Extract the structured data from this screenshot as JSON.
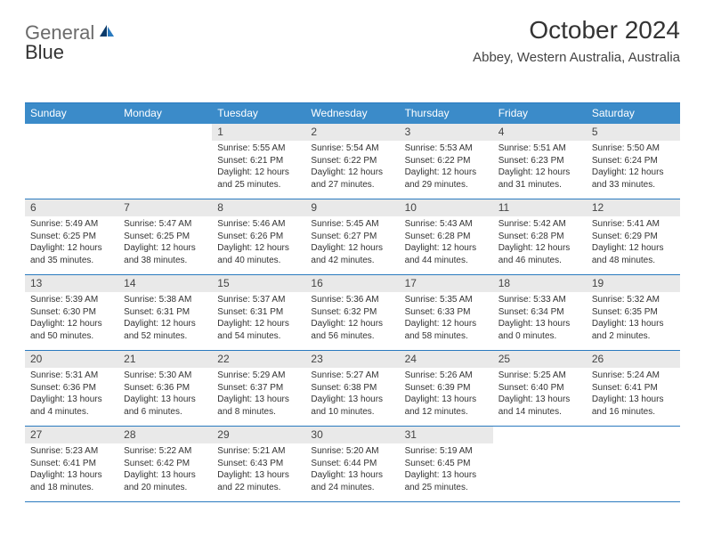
{
  "logo": {
    "part1": "General",
    "part2": "Blue"
  },
  "title": "October 2024",
  "location": "Abbey, Western Australia, Australia",
  "colors": {
    "header_bg": "#3b8bc9",
    "rule": "#2a7abf",
    "daynum_bg": "#e9e9e9",
    "text": "#333333"
  },
  "dow": [
    "Sunday",
    "Monday",
    "Tuesday",
    "Wednesday",
    "Thursday",
    "Friday",
    "Saturday"
  ],
  "weeks": [
    [
      {
        "num": "",
        "lines": []
      },
      {
        "num": "",
        "lines": []
      },
      {
        "num": "1",
        "lines": [
          "Sunrise: 5:55 AM",
          "Sunset: 6:21 PM",
          "Daylight: 12 hours",
          "and 25 minutes."
        ]
      },
      {
        "num": "2",
        "lines": [
          "Sunrise: 5:54 AM",
          "Sunset: 6:22 PM",
          "Daylight: 12 hours",
          "and 27 minutes."
        ]
      },
      {
        "num": "3",
        "lines": [
          "Sunrise: 5:53 AM",
          "Sunset: 6:22 PM",
          "Daylight: 12 hours",
          "and 29 minutes."
        ]
      },
      {
        "num": "4",
        "lines": [
          "Sunrise: 5:51 AM",
          "Sunset: 6:23 PM",
          "Daylight: 12 hours",
          "and 31 minutes."
        ]
      },
      {
        "num": "5",
        "lines": [
          "Sunrise: 5:50 AM",
          "Sunset: 6:24 PM",
          "Daylight: 12 hours",
          "and 33 minutes."
        ]
      }
    ],
    [
      {
        "num": "6",
        "lines": [
          "Sunrise: 5:49 AM",
          "Sunset: 6:25 PM",
          "Daylight: 12 hours",
          "and 35 minutes."
        ]
      },
      {
        "num": "7",
        "lines": [
          "Sunrise: 5:47 AM",
          "Sunset: 6:25 PM",
          "Daylight: 12 hours",
          "and 38 minutes."
        ]
      },
      {
        "num": "8",
        "lines": [
          "Sunrise: 5:46 AM",
          "Sunset: 6:26 PM",
          "Daylight: 12 hours",
          "and 40 minutes."
        ]
      },
      {
        "num": "9",
        "lines": [
          "Sunrise: 5:45 AM",
          "Sunset: 6:27 PM",
          "Daylight: 12 hours",
          "and 42 minutes."
        ]
      },
      {
        "num": "10",
        "lines": [
          "Sunrise: 5:43 AM",
          "Sunset: 6:28 PM",
          "Daylight: 12 hours",
          "and 44 minutes."
        ]
      },
      {
        "num": "11",
        "lines": [
          "Sunrise: 5:42 AM",
          "Sunset: 6:28 PM",
          "Daylight: 12 hours",
          "and 46 minutes."
        ]
      },
      {
        "num": "12",
        "lines": [
          "Sunrise: 5:41 AM",
          "Sunset: 6:29 PM",
          "Daylight: 12 hours",
          "and 48 minutes."
        ]
      }
    ],
    [
      {
        "num": "13",
        "lines": [
          "Sunrise: 5:39 AM",
          "Sunset: 6:30 PM",
          "Daylight: 12 hours",
          "and 50 minutes."
        ]
      },
      {
        "num": "14",
        "lines": [
          "Sunrise: 5:38 AM",
          "Sunset: 6:31 PM",
          "Daylight: 12 hours",
          "and 52 minutes."
        ]
      },
      {
        "num": "15",
        "lines": [
          "Sunrise: 5:37 AM",
          "Sunset: 6:31 PM",
          "Daylight: 12 hours",
          "and 54 minutes."
        ]
      },
      {
        "num": "16",
        "lines": [
          "Sunrise: 5:36 AM",
          "Sunset: 6:32 PM",
          "Daylight: 12 hours",
          "and 56 minutes."
        ]
      },
      {
        "num": "17",
        "lines": [
          "Sunrise: 5:35 AM",
          "Sunset: 6:33 PM",
          "Daylight: 12 hours",
          "and 58 minutes."
        ]
      },
      {
        "num": "18",
        "lines": [
          "Sunrise: 5:33 AM",
          "Sunset: 6:34 PM",
          "Daylight: 13 hours",
          "and 0 minutes."
        ]
      },
      {
        "num": "19",
        "lines": [
          "Sunrise: 5:32 AM",
          "Sunset: 6:35 PM",
          "Daylight: 13 hours",
          "and 2 minutes."
        ]
      }
    ],
    [
      {
        "num": "20",
        "lines": [
          "Sunrise: 5:31 AM",
          "Sunset: 6:36 PM",
          "Daylight: 13 hours",
          "and 4 minutes."
        ]
      },
      {
        "num": "21",
        "lines": [
          "Sunrise: 5:30 AM",
          "Sunset: 6:36 PM",
          "Daylight: 13 hours",
          "and 6 minutes."
        ]
      },
      {
        "num": "22",
        "lines": [
          "Sunrise: 5:29 AM",
          "Sunset: 6:37 PM",
          "Daylight: 13 hours",
          "and 8 minutes."
        ]
      },
      {
        "num": "23",
        "lines": [
          "Sunrise: 5:27 AM",
          "Sunset: 6:38 PM",
          "Daylight: 13 hours",
          "and 10 minutes."
        ]
      },
      {
        "num": "24",
        "lines": [
          "Sunrise: 5:26 AM",
          "Sunset: 6:39 PM",
          "Daylight: 13 hours",
          "and 12 minutes."
        ]
      },
      {
        "num": "25",
        "lines": [
          "Sunrise: 5:25 AM",
          "Sunset: 6:40 PM",
          "Daylight: 13 hours",
          "and 14 minutes."
        ]
      },
      {
        "num": "26",
        "lines": [
          "Sunrise: 5:24 AM",
          "Sunset: 6:41 PM",
          "Daylight: 13 hours",
          "and 16 minutes."
        ]
      }
    ],
    [
      {
        "num": "27",
        "lines": [
          "Sunrise: 5:23 AM",
          "Sunset: 6:41 PM",
          "Daylight: 13 hours",
          "and 18 minutes."
        ]
      },
      {
        "num": "28",
        "lines": [
          "Sunrise: 5:22 AM",
          "Sunset: 6:42 PM",
          "Daylight: 13 hours",
          "and 20 minutes."
        ]
      },
      {
        "num": "29",
        "lines": [
          "Sunrise: 5:21 AM",
          "Sunset: 6:43 PM",
          "Daylight: 13 hours",
          "and 22 minutes."
        ]
      },
      {
        "num": "30",
        "lines": [
          "Sunrise: 5:20 AM",
          "Sunset: 6:44 PM",
          "Daylight: 13 hours",
          "and 24 minutes."
        ]
      },
      {
        "num": "31",
        "lines": [
          "Sunrise: 5:19 AM",
          "Sunset: 6:45 PM",
          "Daylight: 13 hours",
          "and 25 minutes."
        ]
      },
      {
        "num": "",
        "lines": []
      },
      {
        "num": "",
        "lines": []
      }
    ]
  ]
}
